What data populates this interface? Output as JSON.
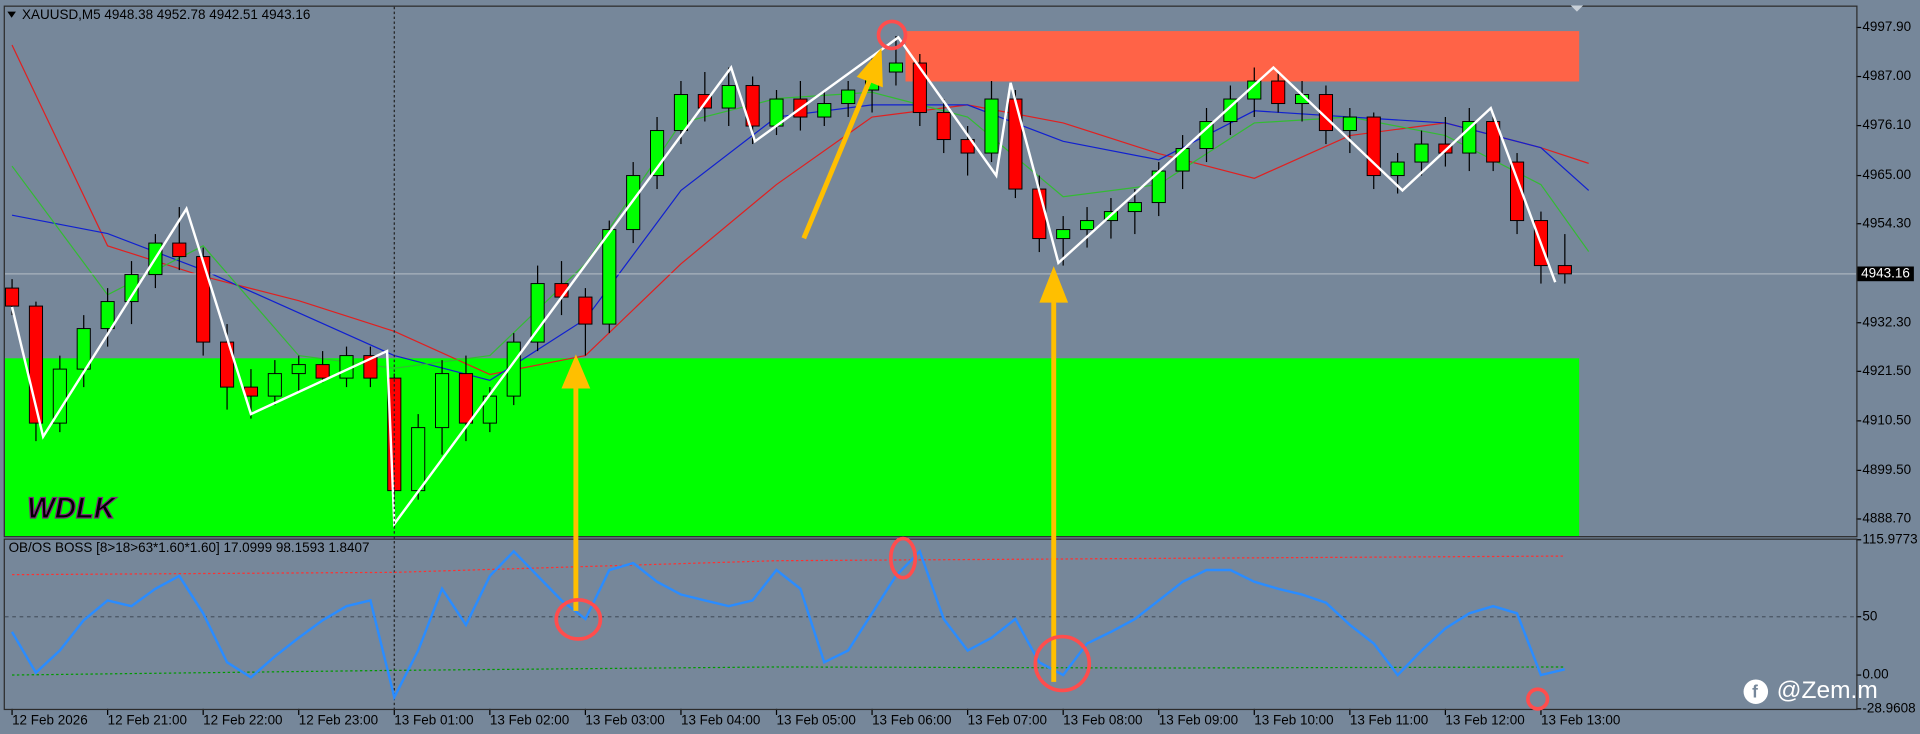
{
  "chart_data": [
    {
      "type": "candlestick",
      "title": "XAUUSD,M5  4948.38 4952.78 4942.51 4943.16",
      "open": [
        4940,
        4936,
        4910,
        4922,
        4931,
        4937,
        4943,
        4950,
        4947,
        4928,
        4918,
        4916,
        4921,
        4923,
        4920,
        4925,
        4920,
        4895,
        4909,
        4921,
        4910,
        4916,
        4928,
        4941,
        4938,
        4932,
        4953,
        4965,
        4975,
        4983,
        4980,
        4985,
        4976,
        4982,
        4978,
        4981,
        4984,
        4988,
        4990,
        4979,
        4973,
        4970,
        4982,
        4962,
        4951,
        4953,
        4955,
        4957,
        4959,
        4966,
        4971,
        4977,
        4982,
        4986,
        4981,
        4983,
        4975,
        4978,
        4965,
        4968,
        4972,
        4970,
        4977,
        4968,
        4955,
        4945
      ],
      "high": [
        4942,
        4937,
        4925,
        4934,
        4940,
        4946,
        4952,
        4958,
        4949,
        4932,
        4922,
        4924,
        4925,
        4926,
        4927,
        4927,
        4921,
        4912,
        4924,
        4925,
        4918,
        4930,
        4945,
        4946,
        4940,
        4955,
        4968,
        4978,
        4986,
        4988,
        4989,
        4987,
        4984,
        4986,
        4984,
        4986,
        4991,
        4996,
        4992,
        4982,
        4976,
        4986,
        4984,
        4965,
        4956,
        4958,
        4960,
        4962,
        4968,
        4974,
        4980,
        4985,
        4989,
        4988,
        4986,
        4985,
        4980,
        4979,
        4970,
        4975,
        4978,
        4980,
        4979,
        4970,
        4957,
        4952
      ],
      "low": [
        4934,
        4906,
        4908,
        4918,
        4927,
        4932,
        4940,
        4944,
        4925,
        4913,
        4911,
        4914,
        4917,
        4919,
        4918,
        4918,
        4887,
        4893,
        4903,
        4906,
        4908,
        4914,
        4926,
        4934,
        4925,
        4930,
        4950,
        4962,
        4972,
        4977,
        4976,
        4972,
        4974,
        4975,
        4976,
        4978,
        4979,
        4985,
        4976,
        4970,
        4965,
        4968,
        4960,
        4948,
        4945,
        4949,
        4951,
        4952,
        4956,
        4962,
        4968,
        4974,
        4978,
        4979,
        4977,
        4972,
        4970,
        4962,
        4961,
        4965,
        4967,
        4966,
        4966,
        4952,
        4941,
        4941
      ],
      "close": [
        4936,
        4910,
        4922,
        4931,
        4937,
        4943,
        4950,
        4947,
        4928,
        4918,
        4916,
        4921,
        4923,
        4920,
        4925,
        4920,
        4895,
        4909,
        4921,
        4910,
        4916,
        4928,
        4941,
        4938,
        4932,
        4953,
        4965,
        4975,
        4983,
        4980,
        4985,
        4976,
        4982,
        4978,
        4981,
        4984,
        4988,
        4990,
        4979,
        4973,
        4970,
        4982,
        4962,
        4951,
        4953,
        4955,
        4957,
        4959,
        4966,
        4971,
        4977,
        4982,
        4986,
        4981,
        4983,
        4975,
        4978,
        4965,
        4968,
        4972,
        4970,
        4977,
        4968,
        4955,
        4945,
        4943.16
      ],
      "up_color": "#00ff00",
      "down_color": "#ff0000",
      "xlim": [
        -0.3,
        77.2
      ],
      "ylim": [
        4884.9,
        5002.5
      ],
      "yticks": [
        {
          "value": 4997.9,
          "label": "4997.90"
        },
        {
          "value": 4987,
          "label": "4987.00"
        },
        {
          "value": 4976.1,
          "label": "4976.10"
        },
        {
          "value": 4965,
          "label": "4965.00"
        },
        {
          "value": 4954.3,
          "label": "4954.30"
        },
        {
          "value": 4932.3,
          "label": "4932.30"
        },
        {
          "value": 4921.5,
          "label": "4921.50"
        },
        {
          "value": 4910.5,
          "label": "4910.50"
        },
        {
          "value": 4899.5,
          "label": "4899.50"
        },
        {
          "value": 4888.7,
          "label": "4888.70"
        }
      ],
      "xticks": [
        {
          "value": 0,
          "label": "12 Feb 2026"
        },
        {
          "value": 4,
          "label": "12 Feb 21:00"
        },
        {
          "value": 8,
          "label": "12 Feb 22:00"
        },
        {
          "value": 12,
          "label": "12 Feb 23:00"
        },
        {
          "value": 16,
          "label": "13 Feb 01:00"
        },
        {
          "value": 20,
          "label": "13 Feb 02:00"
        },
        {
          "value": 24,
          "label": "13 Feb 03:00"
        },
        {
          "value": 28,
          "label": "13 Feb 04:00"
        },
        {
          "value": 32,
          "label": "13 Feb 05:00"
        },
        {
          "value": 36,
          "label": "13 Feb 06:00"
        },
        {
          "value": 40,
          "label": "13 Feb 07:00"
        },
        {
          "value": 44,
          "label": "13 Feb 08:00"
        },
        {
          "value": 48,
          "label": "13 Feb 09:00"
        },
        {
          "value": 52,
          "label": "13 Feb 10:00"
        },
        {
          "value": 56,
          "label": "13 Feb 11:00"
        },
        {
          "value": 60,
          "label": "13 Feb 12:00"
        },
        {
          "value": 64,
          "label": "13 Feb 13:00"
        }
      ],
      "current_price": 4943.16,
      "vline": 16,
      "zones": [
        {
          "color": "#ff6347",
          "x": [
            37.4,
            65.6
          ],
          "y": [
            4985.9,
            4997.1
          ]
        },
        {
          "color": "#00ff00",
          "x": [
            -0.3,
            65.6
          ],
          "y": [
            4884.9,
            4924.4
          ]
        }
      ],
      "series": [
        {
          "color": "#e02020",
          "x": [
            0,
            4,
            8,
            12,
            16,
            20,
            24,
            28,
            32,
            36,
            40,
            44,
            48,
            52,
            56,
            60,
            64,
            66
          ],
          "values": [
            4994,
            4949.4,
            4942.6,
            4937.2,
            4930.4,
            4920.8,
            4925,
            4945.4,
            4963,
            4978,
            4980.7,
            4976.7,
            4969.9,
            4964.4,
            4973.9,
            4976.7,
            4971.2,
            4967.7
          ]
        },
        {
          "color": "#1020d0",
          "x": [
            0,
            4,
            8,
            12,
            16,
            20,
            24,
            28,
            32,
            36,
            40,
            44,
            48,
            52,
            56,
            60,
            64,
            66
          ],
          "values": [
            4956.2,
            4952.1,
            4944,
            4934.5,
            4925,
            4919.5,
            4933.1,
            4961.7,
            4978,
            4980.7,
            4980.7,
            4972.6,
            4968.5,
            4979.4,
            4978,
            4976.7,
            4971.2,
            4961.7
          ]
        },
        {
          "color": "#33bb33",
          "x": [
            0,
            4,
            8,
            12,
            16,
            20,
            24,
            28,
            32,
            36,
            40,
            44,
            48,
            52,
            56,
            60,
            64,
            66
          ],
          "values": [
            4967.1,
            4938.5,
            4949.4,
            4925,
            4922.2,
            4925,
            4945.4,
            4976.7,
            4982.1,
            4983.5,
            4978,
            4960.3,
            4963,
            4976.7,
            4978,
            4973.9,
            4963,
            4948.1
          ]
        }
      ],
      "zigzag": {
        "color": "#ffffff",
        "x": [
          0,
          1.3,
          7.3,
          10,
          15.7,
          16,
          30.1,
          31.1,
          37.1,
          41.2,
          41.8,
          43.8,
          52.8,
          58.2,
          61.9,
          64.6
        ],
        "values": [
          4935.8,
          4907,
          4957.6,
          4912,
          4926,
          4887.6,
          4989,
          4972.6,
          4995.7,
          4965,
          4985.6,
          4945.6,
          4989,
          4961.7,
          4980,
          4941.3
        ]
      }
    },
    {
      "type": "line",
      "title": "OB/OS BOSS [8>18>63*1.60*1.60] 17.0999 98.1593 1.8407",
      "xlim": [
        -0.3,
        77.2
      ],
      "ylim": [
        -28.9608,
        115.9773
      ],
      "yticks": [
        115.9773,
        50,
        {
          "value": 0,
          "label": "0.00"
        },
        -28.9608
      ],
      "level": 50,
      "series": [
        {
          "color": "#ff3030",
          "style": "dashed",
          "x": [
            0,
            16,
            32,
            48,
            65
          ],
          "values": [
            86,
            88,
            98,
            100,
            102
          ]
        },
        {
          "color": "#009900",
          "style": "dashed",
          "x": [
            0,
            16,
            32,
            48,
            65
          ],
          "values": [
            0,
            4,
            7,
            6,
            7
          ]
        },
        {
          "color": "#2a8cff",
          "style": "solid",
          "values": [
            37,
            2,
            21,
            47,
            64,
            59,
            74,
            85,
            53,
            11,
            -2,
            16,
            32,
            47,
            59,
            64,
            -19,
            21,
            74,
            43,
            85,
            106,
            85,
            64,
            48,
            90,
            96,
            80,
            69,
            64,
            59,
            64,
            90,
            74,
            11,
            21,
            53,
            85,
            106,
            48,
            21,
            32,
            48,
            11,
            0,
            27,
            37,
            48,
            64,
            80,
            90,
            90,
            80,
            74,
            69,
            62,
            43,
            27,
            0,
            21,
            40,
            53,
            59,
            53,
            0,
            5
          ]
        }
      ]
    }
  ],
  "logo": "WDLK",
  "watermark": "@Zem.m"
}
